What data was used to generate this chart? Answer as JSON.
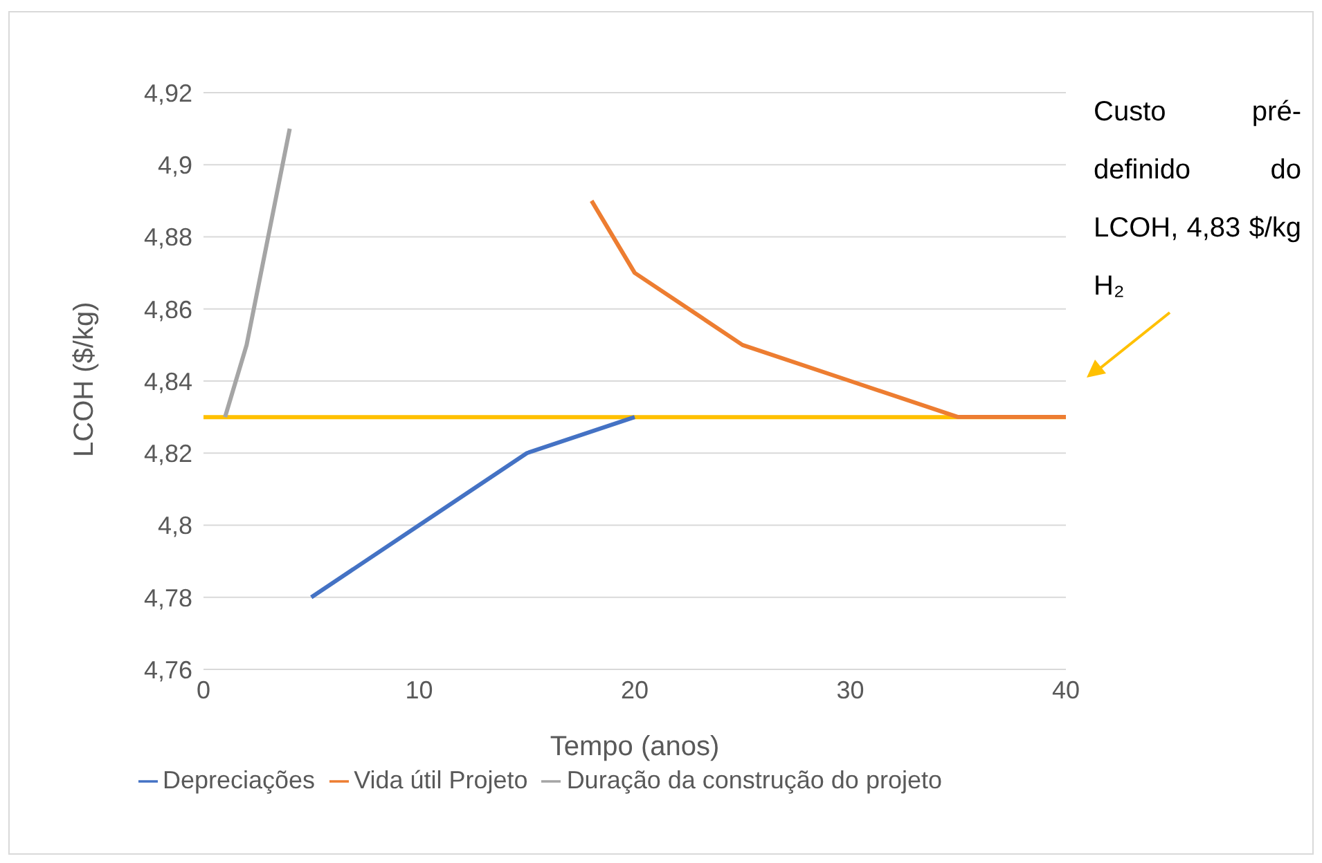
{
  "chart_data": {
    "type": "line",
    "xlabel": "Tempo (anos)",
    "ylabel": "LCOH ($/kg)",
    "series": [
      {
        "name": "Depreciações",
        "color": "#4472c4",
        "x": [
          5,
          10,
          15,
          20
        ],
        "values": [
          4.78,
          4.8,
          4.82,
          4.83
        ]
      },
      {
        "name": "Vida útil Projeto",
        "color": "#ed7d31",
        "x": [
          18,
          20,
          25,
          30,
          35,
          40
        ],
        "values": [
          4.89,
          4.87,
          4.85,
          4.84,
          4.83,
          4.83
        ]
      },
      {
        "name": "Duração da construção do projeto",
        "color": "#a5a5a5",
        "x": [
          1,
          2,
          4
        ],
        "values": [
          4.83,
          4.85,
          4.91
        ]
      }
    ],
    "xlim": [
      0,
      40
    ],
    "xticks": [
      0,
      10,
      20,
      30,
      40
    ],
    "ylim": [
      4.76,
      4.92
    ],
    "yticks": [
      {
        "value": 4.76,
        "label": "4,76"
      },
      {
        "value": 4.78,
        "label": "4,78"
      },
      {
        "value": 4.8,
        "label": "4,8"
      },
      {
        "value": 4.82,
        "label": "4,82"
      },
      {
        "value": 4.84,
        "label": "4,84"
      },
      {
        "value": 4.86,
        "label": "4,86"
      },
      {
        "value": 4.88,
        "label": "4,88"
      },
      {
        "value": 4.9,
        "label": "4,9"
      },
      {
        "value": 4.92,
        "label": "4,92"
      }
    ],
    "ref_lines": [
      {
        "axis": "y",
        "value": 4.83,
        "color": "#ffc000"
      }
    ],
    "annotations": [
      "Custo pré-definido do LCOH, 4,83 $/kg H₂"
    ],
    "grid": "y",
    "legend": "bottom",
    "marker": "none",
    "line_style": "solid"
  }
}
